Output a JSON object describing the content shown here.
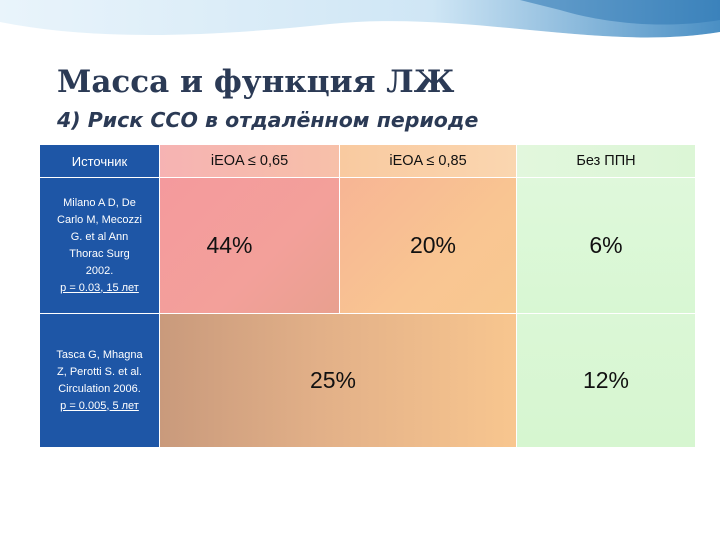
{
  "slide": {
    "title": "Масса и функция ЛЖ",
    "subtitle": "4) Риск ССО в отдалённом периоде"
  },
  "table": {
    "headers": {
      "source": "Источник",
      "col1": "iEOA ≤ 0,65",
      "col2": "iEOA ≤ 0,85",
      "col3": "Без ППН"
    },
    "rows": [
      {
        "source_lines": [
          "Milano A D, De",
          "Carlo M, Mecozzi",
          "G. et al Ann",
          "Thorac Surg",
          "2002."
        ],
        "source_stat": "p = 0.03, 15 лет",
        "col1": "44%",
        "col2": "20%",
        "col3": "6%"
      },
      {
        "source_lines": [
          "Tasca G, Mhagna",
          "Z, Perotti S. et al.",
          "Circulation 2006."
        ],
        "source_stat": "p = 0.005, 5 лет",
        "col12": "25%",
        "col3": "12%"
      }
    ]
  },
  "colors": {
    "source_column": "#1e56a6",
    "pink_cell": "#f3999a",
    "orange_cell": "#f8c38f",
    "green_cell": "#d8f7d3",
    "title_text": "#2b3a55"
  }
}
